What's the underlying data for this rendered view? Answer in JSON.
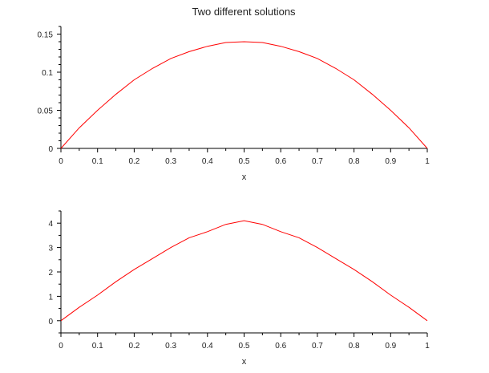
{
  "chart_data": [
    {
      "type": "line",
      "title": "Two different solutions",
      "xlabel": "x",
      "ylabel": "",
      "xlim": [
        0,
        1
      ],
      "ylim": [
        0,
        0.16
      ],
      "xticks": [
        "0",
        "0.1",
        "0.2",
        "0.3",
        "0.4",
        "0.5",
        "0.6",
        "0.7",
        "0.8",
        "0.9",
        "1"
      ],
      "yticks": [
        "0",
        "0.05",
        "0.1",
        "0.15"
      ],
      "grid": false,
      "series": [
        {
          "color": "#ff0000",
          "x": [
            0,
            0.05,
            0.1,
            0.15,
            0.2,
            0.25,
            0.3,
            0.35,
            0.4,
            0.45,
            0.5,
            0.55,
            0.6,
            0.65,
            0.7,
            0.75,
            0.8,
            0.85,
            0.9,
            0.95,
            1
          ],
          "y": [
            0,
            0.027,
            0.05,
            0.071,
            0.09,
            0.105,
            0.118,
            0.127,
            0.134,
            0.139,
            0.14,
            0.139,
            0.134,
            0.127,
            0.118,
            0.105,
            0.09,
            0.071,
            0.05,
            0.027,
            0
          ]
        }
      ]
    },
    {
      "type": "line",
      "title": "",
      "xlabel": "x",
      "ylabel": "",
      "xlim": [
        0,
        1
      ],
      "ylim": [
        -0.5,
        4.5
      ],
      "xticks": [
        "0",
        "0.1",
        "0.2",
        "0.3",
        "0.4",
        "0.5",
        "0.6",
        "0.7",
        "0.8",
        "0.9",
        "1"
      ],
      "yticks": [
        "0",
        "1",
        "2",
        "3",
        "4"
      ],
      "grid": false,
      "series": [
        {
          "color": "#ff0000",
          "x": [
            0,
            0.05,
            0.1,
            0.15,
            0.2,
            0.25,
            0.3,
            0.35,
            0.4,
            0.45,
            0.5,
            0.55,
            0.6,
            0.65,
            0.7,
            0.75,
            0.8,
            0.85,
            0.9,
            0.95,
            1
          ],
          "y": [
            0,
            0.55,
            1.05,
            1.6,
            2.1,
            2.55,
            3.0,
            3.4,
            3.65,
            3.95,
            4.1,
            3.95,
            3.65,
            3.4,
            3.0,
            2.55,
            2.1,
            1.6,
            1.05,
            0.55,
            0
          ]
        }
      ]
    }
  ]
}
